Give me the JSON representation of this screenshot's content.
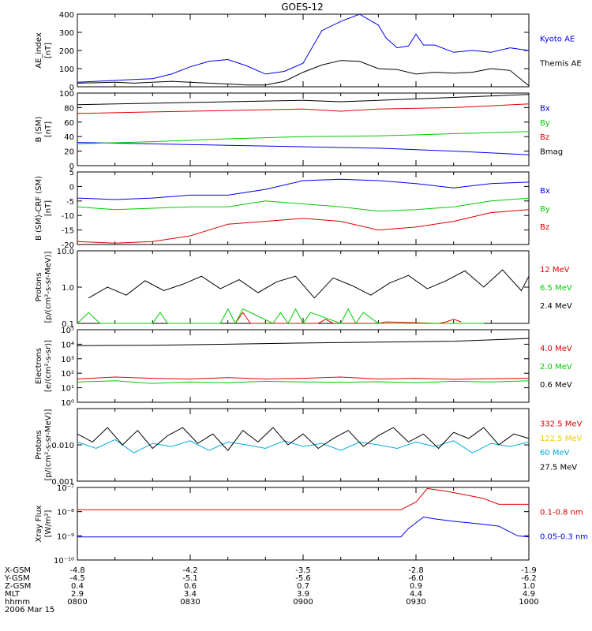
{
  "title": "GOES-12",
  "colors": {
    "black": "#000000",
    "blue": "#0000ee",
    "red": "#dd0000",
    "green": "#00cc00",
    "cyan": "#00aadd",
    "yellow": "#eecc00"
  },
  "chart_data": [
    {
      "type": "line",
      "id": "ae",
      "ylabel": [
        "AE_index",
        "[nT]"
      ],
      "ylim": [
        0,
        400
      ],
      "yticks": [
        0,
        100,
        200,
        300,
        400
      ],
      "scale": "linear",
      "series": [
        {
          "name": "Kyoto AE",
          "color": "blue",
          "x": [
            0,
            5,
            10,
            15,
            20,
            25,
            30,
            35,
            40,
            45,
            50,
            55,
            60,
            65,
            70,
            75,
            80,
            82,
            85,
            88,
            90,
            92,
            95,
            100,
            105,
            110,
            115,
            120
          ],
          "values": [
            25,
            30,
            35,
            40,
            45,
            70,
            110,
            140,
            150,
            115,
            70,
            85,
            130,
            310,
            360,
            400,
            340,
            270,
            215,
            225,
            290,
            230,
            230,
            190,
            200,
            190,
            215,
            200
          ]
        },
        {
          "name": "Themis AE",
          "color": "black",
          "x": [
            0,
            5,
            10,
            15,
            20,
            25,
            30,
            35,
            40,
            45,
            50,
            55,
            60,
            65,
            70,
            75,
            80,
            85,
            90,
            95,
            100,
            105,
            110,
            115,
            120
          ],
          "values": [
            20,
            22,
            25,
            20,
            25,
            30,
            25,
            20,
            15,
            10,
            10,
            30,
            80,
            120,
            145,
            140,
            100,
            95,
            70,
            80,
            75,
            80,
            100,
            90,
            5
          ]
        }
      ]
    },
    {
      "type": "line",
      "id": "bsm",
      "ylabel": [
        "B (SM)",
        "[nT]"
      ],
      "ylim": [
        0,
        100
      ],
      "yticks": [
        0,
        20,
        40,
        60,
        80,
        100
      ],
      "scale": "linear",
      "series": [
        {
          "name": "Bx",
          "color": "blue",
          "x": [
            0,
            20,
            40,
            60,
            80,
            100,
            120
          ],
          "values": [
            32,
            30,
            28,
            26,
            24,
            20,
            15
          ]
        },
        {
          "name": "By",
          "color": "green",
          "x": [
            0,
            20,
            40,
            60,
            80,
            100,
            120
          ],
          "values": [
            30,
            33,
            37,
            40,
            41,
            44,
            47
          ]
        },
        {
          "name": "Bz",
          "color": "red",
          "x": [
            0,
            20,
            40,
            60,
            70,
            80,
            100,
            120
          ],
          "values": [
            72,
            74,
            76,
            78,
            75,
            78,
            80,
            85
          ]
        },
        {
          "name": "Bmag",
          "color": "black",
          "x": [
            0,
            20,
            40,
            60,
            70,
            80,
            100,
            120
          ],
          "values": [
            84,
            86,
            88,
            90,
            88,
            90,
            94,
            98
          ]
        }
      ]
    },
    {
      "type": "line",
      "id": "bcrf",
      "ylabel": [
        "B (SM)-CRF (SM)",
        "[nT]"
      ],
      "ylim": [
        -20,
        5
      ],
      "yticks": [
        -20,
        -15,
        -10,
        -5,
        0,
        5
      ],
      "scale": "linear",
      "series": [
        {
          "name": "Bx",
          "color": "blue",
          "x": [
            0,
            10,
            20,
            30,
            40,
            50,
            60,
            70,
            80,
            90,
            100,
            110,
            120
          ],
          "values": [
            -4,
            -4.5,
            -4,
            -3,
            -3,
            -1,
            2,
            2.5,
            2,
            1,
            -0.5,
            1,
            1.5
          ]
        },
        {
          "name": "By",
          "color": "green",
          "x": [
            0,
            10,
            20,
            30,
            40,
            50,
            60,
            70,
            80,
            90,
            100,
            110,
            120
          ],
          "values": [
            -7,
            -8,
            -7.5,
            -7,
            -7,
            -5,
            -6,
            -7,
            -8.5,
            -8,
            -7,
            -5,
            -4
          ]
        },
        {
          "name": "Bz",
          "color": "red",
          "x": [
            0,
            10,
            20,
            30,
            40,
            50,
            60,
            70,
            80,
            90,
            100,
            110,
            120
          ],
          "values": [
            -19,
            -19.5,
            -19,
            -17,
            -13,
            -12,
            -11,
            -12,
            -15,
            -14,
            -12,
            -9,
            -8
          ]
        }
      ]
    },
    {
      "type": "line",
      "id": "protons1",
      "ylabel": [
        "Protons",
        "[p/(cm²-s-sr-MeV)]"
      ],
      "ylim": [
        0.1,
        10
      ],
      "yticks": [
        0.1,
        1.0,
        10.0
      ],
      "yticklabels": [
        "0.1",
        "1.0",
        "10.0"
      ],
      "scale": "log",
      "series": [
        {
          "name": "12 MeV",
          "color": "red",
          "x": [
            42,
            44,
            46,
            64,
            66,
            68,
            80,
            82,
            96,
            98,
            100,
            102
          ],
          "values": [
            0.1,
            0.2,
            0.1,
            0.1,
            0.13,
            0.1,
            0.1,
            0.11,
            0.1,
            0.11,
            0.13,
            0.11
          ]
        },
        {
          "name": "6.5 MeV",
          "color": "green",
          "x": [
            0,
            3,
            6,
            20,
            22,
            24,
            38,
            40,
            42,
            44,
            52,
            54,
            56,
            58,
            60,
            62,
            70,
            72,
            74,
            76,
            80,
            84,
            88,
            92,
            94,
            100,
            104,
            108
          ],
          "values": [
            0.1,
            0.2,
            0.1,
            0.1,
            0.2,
            0.1,
            0.1,
            0.25,
            0.1,
            0.25,
            0.1,
            0.2,
            0.1,
            0.25,
            0.1,
            0.2,
            0.1,
            0.25,
            0.1,
            0.2,
            0.1,
            0.1,
            0.1,
            0.1,
            0.1,
            0.1,
            0.1,
            0.1
          ]
        },
        {
          "name": "2.4 MeV",
          "color": "black",
          "x": [
            3,
            8,
            13,
            18,
            23,
            28,
            33,
            38,
            43,
            48,
            53,
            58,
            63,
            68,
            73,
            78,
            83,
            88,
            93,
            98,
            103,
            108,
            113,
            118,
            120
          ],
          "values": [
            0.5,
            1.0,
            0.6,
            1.5,
            0.8,
            1.2,
            2.0,
            0.9,
            1.6,
            0.7,
            1.4,
            2.0,
            0.5,
            1.8,
            1.1,
            0.6,
            1.3,
            2.1,
            0.9,
            1.5,
            2.8,
            1.0,
            3.0,
            0.8,
            2.0
          ]
        }
      ]
    },
    {
      "type": "line",
      "id": "electrons",
      "ylabel": [
        "Electrons",
        "[e/(cm²-s-sr)]"
      ],
      "ylim": [
        1,
        100000
      ],
      "yticks": [
        1,
        10,
        100,
        1000,
        10000,
        100000
      ],
      "yticklabels": [
        "10⁰",
        "10¹",
        "10²",
        "10³",
        "10⁴",
        "10⁵"
      ],
      "scale": "log",
      "series": [
        {
          "name": "4.0 MeV",
          "color": "red",
          "x": [
            0,
            10,
            20,
            30,
            40,
            50,
            60,
            70,
            80,
            90,
            100,
            110,
            120
          ],
          "values": [
            40,
            55,
            45,
            40,
            50,
            40,
            45,
            55,
            40,
            45,
            38,
            42,
            45
          ]
        },
        {
          "name": "2.0 MeV",
          "color": "green",
          "x": [
            0,
            10,
            20,
            30,
            40,
            50,
            60,
            70,
            80,
            90,
            100,
            110,
            120
          ],
          "values": [
            25,
            30,
            20,
            25,
            22,
            28,
            25,
            24,
            26,
            22,
            28,
            25,
            30
          ]
        },
        {
          "name": "0.6 MeV",
          "color": "black",
          "x": [
            0,
            20,
            40,
            60,
            80,
            100,
            120
          ],
          "values": [
            8000,
            8500,
            10000,
            12000,
            14000,
            16000,
            25000
          ]
        }
      ]
    },
    {
      "type": "line",
      "id": "protons2",
      "ylabel": [
        "Protons",
        "[p/(cm²-s-sr-MeV)]"
      ],
      "ylim": [
        0.001,
        0.1
      ],
      "yticks": [
        0.001,
        0.01,
        0.1
      ],
      "yticklabels": [
        "0.001",
        "0.010",
        ""
      ],
      "scale": "log",
      "series": [
        {
          "name": "332.5 MeV",
          "color": "red",
          "x": [],
          "values": []
        },
        {
          "name": "122.5 MeV",
          "color": "yellow",
          "x": [],
          "values": []
        },
        {
          "name": "60 MeV",
          "color": "cyan",
          "x": [
            0,
            5,
            10,
            15,
            20,
            25,
            30,
            35,
            40,
            45,
            50,
            55,
            60,
            65,
            70,
            75,
            80,
            85,
            90,
            95,
            100,
            105,
            110,
            115,
            120
          ],
          "values": [
            0.012,
            0.008,
            0.014,
            0.006,
            0.011,
            0.009,
            0.013,
            0.007,
            0.012,
            0.01,
            0.008,
            0.013,
            0.009,
            0.011,
            0.007,
            0.012,
            0.01,
            0.008,
            0.012,
            0.009,
            0.013,
            0.006,
            0.011,
            0.009,
            0.012
          ]
        },
        {
          "name": "27.5 MeV",
          "color": "black",
          "x": [
            0,
            4,
            8,
            12,
            16,
            20,
            24,
            28,
            32,
            36,
            40,
            44,
            48,
            52,
            56,
            60,
            64,
            68,
            72,
            76,
            80,
            84,
            88,
            92,
            96,
            100,
            104,
            108,
            112,
            116,
            120
          ],
          "values": [
            0.02,
            0.012,
            0.03,
            0.01,
            0.025,
            0.008,
            0.018,
            0.03,
            0.011,
            0.02,
            0.007,
            0.025,
            0.012,
            0.03,
            0.01,
            0.02,
            0.008,
            0.015,
            0.025,
            0.009,
            0.018,
            0.03,
            0.012,
            0.02,
            0.008,
            0.022,
            0.015,
            0.03,
            0.01,
            0.02,
            0.015
          ]
        }
      ]
    },
    {
      "type": "line",
      "id": "xray",
      "ylabel": [
        "Xray Flux",
        "[W/m²]"
      ],
      "ylim": [
        1e-10,
        1e-07
      ],
      "yticks": [
        1e-10,
        1e-09,
        1e-08,
        1e-07
      ],
      "yticklabels": [
        "10⁻¹⁰",
        "10⁻⁹",
        "10⁻⁸",
        "10⁻⁷"
      ],
      "scale": "log",
      "series": [
        {
          "name": "0.1-0.8 nm",
          "color": "red",
          "x": [
            0,
            86,
            90,
            93,
            98,
            103,
            108,
            112,
            120
          ],
          "values": [
            1.2e-08,
            1.2e-08,
            2.5e-08,
            9e-08,
            7e-08,
            5e-08,
            3.5e-08,
            2e-08,
            2e-08
          ]
        },
        {
          "name": "0.05-0.3 nm",
          "color": "blue",
          "x": [
            0,
            86,
            88,
            92,
            95,
            100,
            108,
            112,
            117,
            120
          ],
          "values": [
            9e-10,
            9e-10,
            2e-09,
            6e-09,
            5e-09,
            4e-09,
            3e-09,
            2.5e-09,
            1e-09,
            9e-10
          ]
        }
      ]
    }
  ],
  "xaxis": {
    "minutes": [
      0,
      30,
      60,
      90,
      120
    ],
    "rows": [
      {
        "label": "X-GSM",
        "values": [
          "-4.8",
          "-4.2",
          "-3.5",
          "-2.8",
          "-1.9"
        ]
      },
      {
        "label": "Y-GSM",
        "values": [
          "-4.5",
          "-5.1",
          "-5.6",
          "-6.0",
          "-6.2"
        ]
      },
      {
        "label": "Z-GSM",
        "values": [
          "0.4",
          "0.6",
          "0.7",
          "0.9",
          "1.0"
        ]
      },
      {
        "label": "MLT",
        "values": [
          "2.9",
          "3.4",
          "3.9",
          "4.4",
          "4.9"
        ]
      },
      {
        "label": "hhmm",
        "values": [
          "0800",
          "0830",
          "0900",
          "0930",
          "1000"
        ]
      }
    ],
    "date": "2006 Mar 15"
  }
}
